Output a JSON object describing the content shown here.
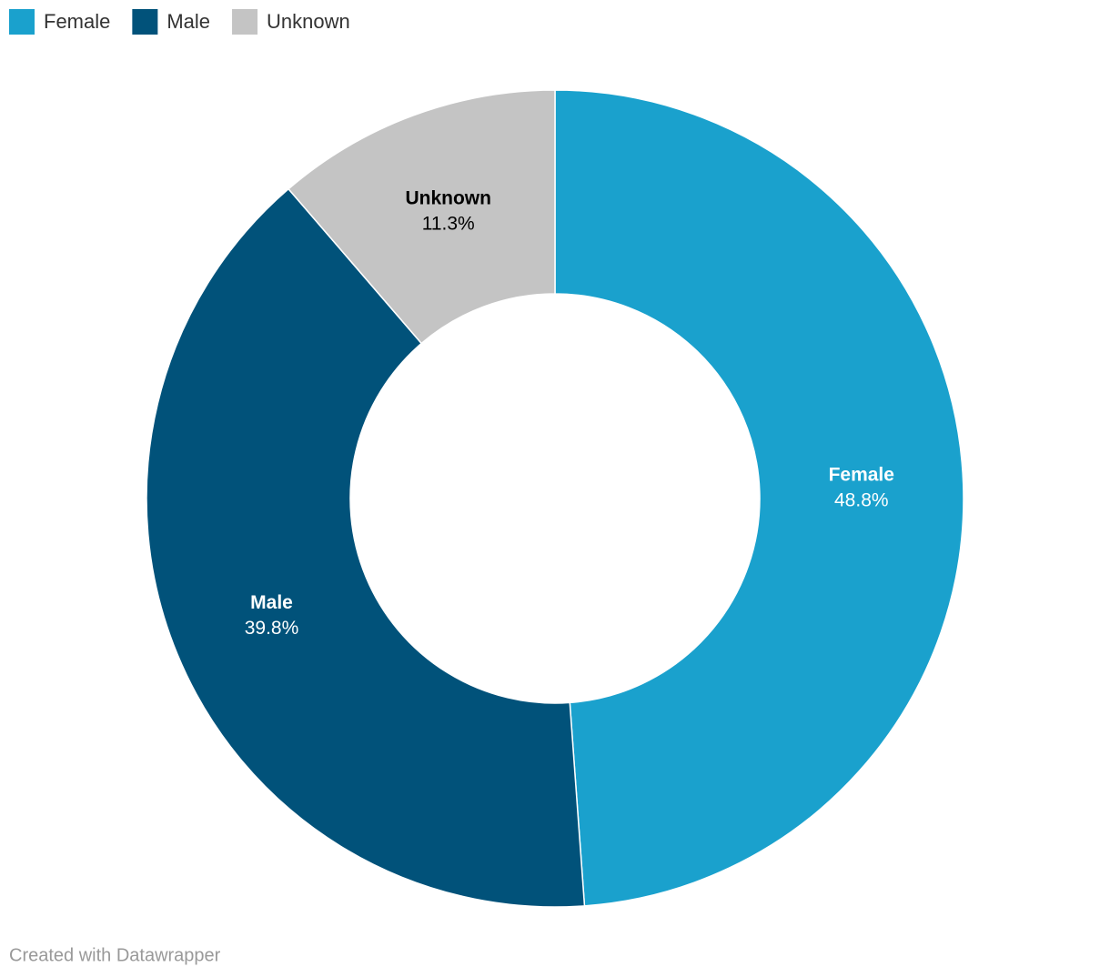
{
  "chart_data": {
    "type": "donut",
    "categories": [
      "Female",
      "Male",
      "Unknown"
    ],
    "values": [
      48.8,
      39.8,
      11.3
    ],
    "value_labels": [
      "48.8%",
      "39.8%",
      "11.3%"
    ],
    "colors": [
      "#1aa1cd",
      "#01527a",
      "#c4c4c4"
    ],
    "legend": "top-left"
  },
  "credit": "Created with Datawrapper"
}
